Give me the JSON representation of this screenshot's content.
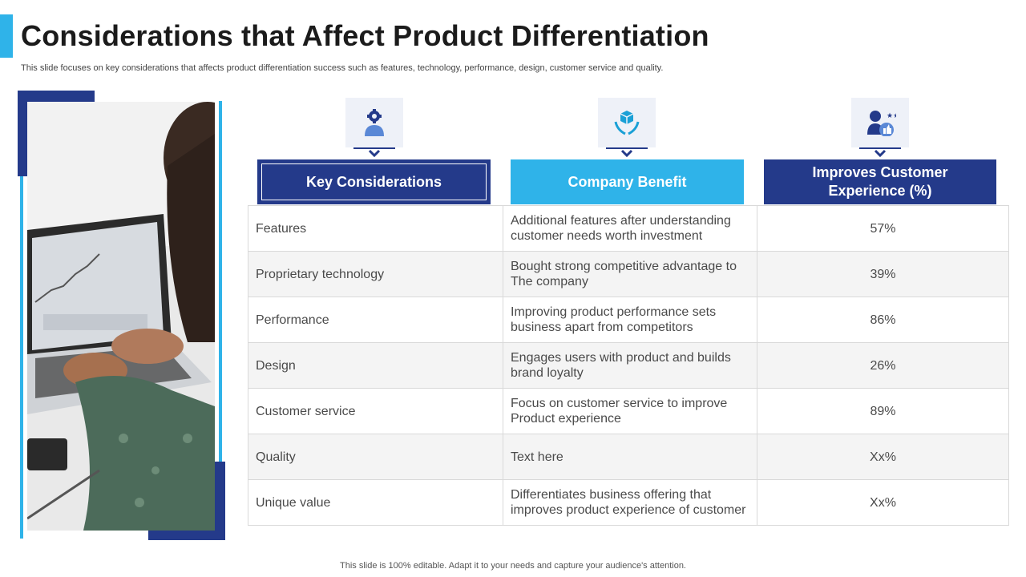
{
  "title": "Considerations that Affect Product Differentiation",
  "subtitle": "This slide focuses on key considerations that affects product differentiation success such as features, technology, performance, design, customer service and quality.",
  "headers": {
    "key_considerations": "Key Considerations",
    "company_benefit": "Company Benefit",
    "improves_cx": "Improves Customer Experience (%)"
  },
  "icons": {
    "col1": "user-gear-icon",
    "col2": "hands-cube-icon",
    "col3": "user-like-icon"
  },
  "rows": [
    {
      "consideration": "Features",
      "benefit": "Additional features after understanding customer needs worth investment",
      "percent": "57%"
    },
    {
      "consideration": "Proprietary technology",
      "benefit": "Bought strong competitive advantage to The company",
      "percent": "39%"
    },
    {
      "consideration": "Performance",
      "benefit": "Improving product performance sets business apart from competitors",
      "percent": "86%"
    },
    {
      "consideration": "Design",
      "benefit": "Engages users with product and builds brand loyalty",
      "percent": "26%"
    },
    {
      "consideration": "Customer service",
      "benefit": "Focus on customer service to improve Product experience",
      "percent": "89%"
    },
    {
      "consideration": "Quality",
      "benefit": "Text here",
      "percent": "Xx%"
    },
    {
      "consideration": "Unique value",
      "benefit": "Differentiates business offering that improves product experience of customer",
      "percent": "Xx%"
    }
  ],
  "footer": "This slide is 100% editable. Adapt it to your needs and capture your audience's attention.",
  "colors": {
    "navy": "#243a8a",
    "sky_blue": "#2fb3e9"
  }
}
